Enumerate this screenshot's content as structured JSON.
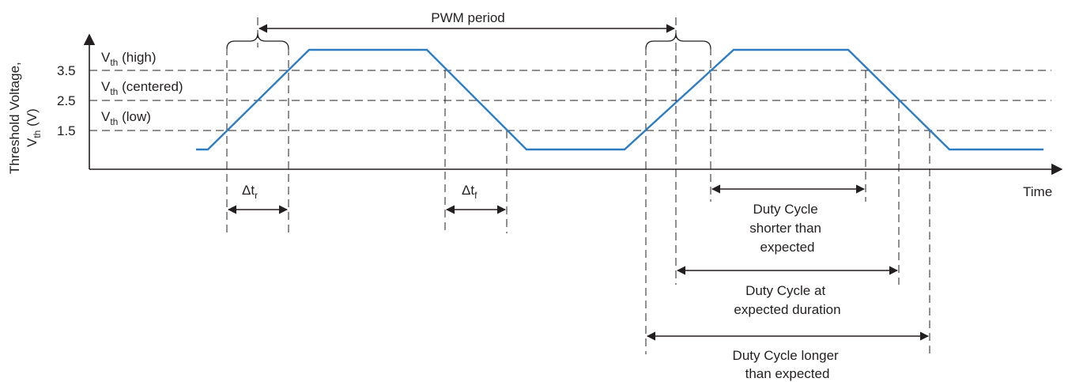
{
  "y_axis": {
    "title_line1": "Threshold Voltage,",
    "title_v": "V",
    "title_sub": "th",
    "title_unit": " (V)",
    "ticks": [
      "3.5",
      "2.5",
      "1.5"
    ]
  },
  "x_axis": {
    "title": "Time"
  },
  "thresholds": {
    "v": "V",
    "sub": "th",
    "high": " (high)",
    "centered": " (centered)",
    "low": " (low)"
  },
  "pwm_period_label": "PWM period",
  "rise_time": {
    "delta": "Δt",
    "sub": "r"
  },
  "fall_time": {
    "delta": "Δt",
    "sub": "f"
  },
  "duty_shorter": [
    "Duty Cycle",
    "shorter than",
    "expected"
  ],
  "duty_expected": [
    "Duty Cycle  at",
    "expected duration"
  ],
  "duty_longer": [
    "Duty Cycle longer",
    "than expected"
  ],
  "colors": {
    "waveform": "#2e7dc2",
    "ink": "#231f20"
  }
}
